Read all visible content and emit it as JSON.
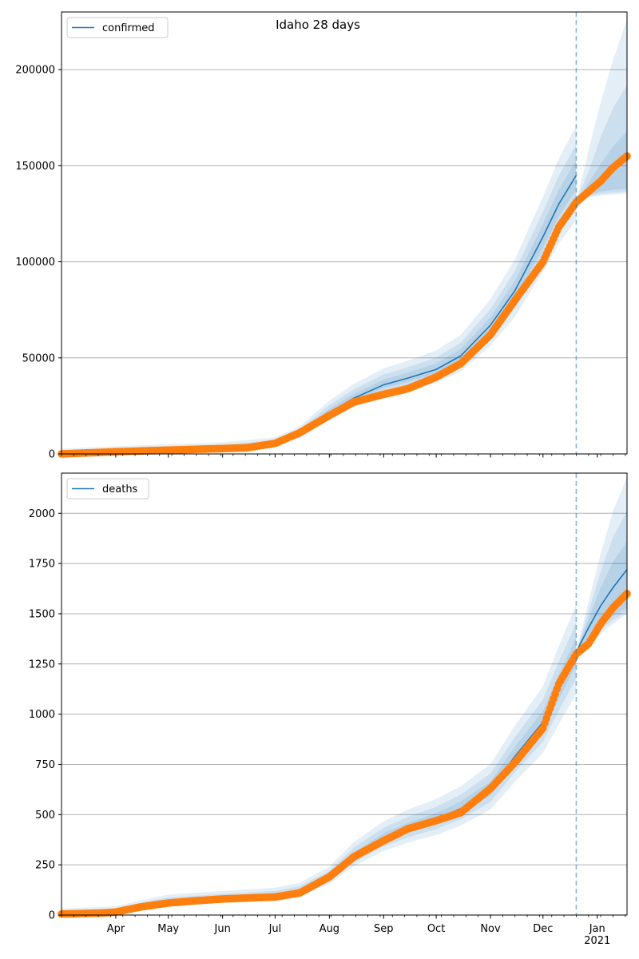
{
  "figure": {
    "title": "Idaho 28 days"
  },
  "colors": {
    "fit": "#1f77b4",
    "observed": "#ff7f0e",
    "band": "#1f77b4",
    "grid": "#b0b0b0"
  },
  "chart_data": [
    {
      "type": "line",
      "legend": "confirmed",
      "legend_position": "top-left",
      "grid": "horizontal",
      "xlim": [
        "2020-03-01",
        "2021-01-18"
      ],
      "ylim": [
        0,
        230000
      ],
      "x_ticks": [
        {
          "date": "2020-04-01",
          "label": "Apr"
        },
        {
          "date": "2020-05-01",
          "label": "May"
        },
        {
          "date": "2020-06-01",
          "label": "Jun"
        },
        {
          "date": "2020-07-01",
          "label": "Jul"
        },
        {
          "date": "2020-08-01",
          "label": "Aug"
        },
        {
          "date": "2020-09-01",
          "label": "Sep"
        },
        {
          "date": "2020-10-01",
          "label": "Oct"
        },
        {
          "date": "2020-11-01",
          "label": "Nov"
        },
        {
          "date": "2020-12-01",
          "label": "Dec"
        },
        {
          "date": "2021-01-01",
          "label": "Jan\n2021"
        }
      ],
      "y_ticks": [
        0,
        50000,
        100000,
        150000,
        200000
      ],
      "forecast_start": "2020-12-20",
      "fit": {
        "x": [
          "2020-03-01",
          "2020-04-01",
          "2020-05-01",
          "2020-06-01",
          "2020-07-01",
          "2020-07-15",
          "2020-08-01",
          "2020-08-15",
          "2020-09-01",
          "2020-09-15",
          "2020-10-01",
          "2020-10-15",
          "2020-11-01",
          "2020-11-15",
          "2020-12-01",
          "2020-12-10",
          "2020-12-20"
        ],
        "y": [
          0,
          1000,
          2000,
          2800,
          5000,
          10000,
          21500,
          29000,
          36000,
          39500,
          44000,
          51000,
          67000,
          85000,
          113000,
          130000,
          145000
        ]
      },
      "forecast": {
        "x": [
          "2020-12-20",
          "2020-12-27",
          "2021-01-03",
          "2021-01-10",
          "2021-01-18"
        ],
        "median": [
          131000,
          137000,
          143000,
          150000,
          156000
        ],
        "bands": [
          {
            "lower": [
              131000,
              134500,
              136500,
              137500,
              138000
            ],
            "upper": [
              131000,
              141000,
              151000,
              160000,
              168000
            ]
          },
          {
            "lower": [
              131000,
              134000,
              135500,
              136000,
              136500
            ],
            "upper": [
              131000,
              147000,
              165000,
              180000,
              192000
            ]
          },
          {
            "lower": [
              131000,
              133500,
              134500,
              135000,
              135500
            ],
            "upper": [
              131000,
              158000,
              183000,
              205000,
              226000
            ]
          }
        ]
      },
      "observed": {
        "x": [
          "2020-03-01",
          "2020-04-01",
          "2020-05-01",
          "2020-06-01",
          "2020-06-15",
          "2020-07-01",
          "2020-07-15",
          "2020-08-01",
          "2020-08-15",
          "2020-09-01",
          "2020-09-15",
          "2020-10-01",
          "2020-10-15",
          "2020-11-01",
          "2020-11-15",
          "2020-12-01",
          "2020-12-10",
          "2020-12-20",
          "2020-12-27",
          "2021-01-03",
          "2021-01-10",
          "2021-01-18"
        ],
        "y": [
          0,
          1100,
          2000,
          2800,
          3200,
          5500,
          11000,
          20000,
          27000,
          31000,
          34000,
          40000,
          47000,
          62000,
          80000,
          100000,
          118000,
          131000,
          136500,
          142000,
          149000,
          155000
        ]
      }
    },
    {
      "type": "line",
      "legend": "deaths",
      "legend_position": "top-left",
      "grid": "horizontal",
      "xlim": [
        "2020-03-01",
        "2021-01-18"
      ],
      "ylim": [
        0,
        2200
      ],
      "x_ticks": [
        {
          "date": "2020-04-01",
          "label": "Apr"
        },
        {
          "date": "2020-05-01",
          "label": "May"
        },
        {
          "date": "2020-06-01",
          "label": "Jun"
        },
        {
          "date": "2020-07-01",
          "label": "Jul"
        },
        {
          "date": "2020-08-01",
          "label": "Aug"
        },
        {
          "date": "2020-09-01",
          "label": "Sep"
        },
        {
          "date": "2020-10-01",
          "label": "Oct"
        },
        {
          "date": "2020-11-01",
          "label": "Nov"
        },
        {
          "date": "2020-12-01",
          "label": "Dec"
        },
        {
          "date": "2021-01-01",
          "label": "Jan\n2021"
        }
      ],
      "y_ticks": [
        0,
        250,
        500,
        750,
        1000,
        1250,
        1500,
        1750,
        2000
      ],
      "forecast_start": "2020-12-20",
      "fit": {
        "x": [
          "2020-03-01",
          "2020-04-01",
          "2020-04-15",
          "2020-05-01",
          "2020-06-01",
          "2020-07-01",
          "2020-07-15",
          "2020-08-01",
          "2020-08-15",
          "2020-09-01",
          "2020-09-15",
          "2020-10-01",
          "2020-10-15",
          "2020-11-01",
          "2020-11-15",
          "2020-12-01",
          "2020-12-10",
          "2020-12-20"
        ],
        "y": [
          5,
          15,
          40,
          65,
          80,
          95,
          115,
          185,
          290,
          380,
          430,
          475,
          530,
          625,
          790,
          960,
          1130,
          1310
        ]
      },
      "forecast": {
        "x": [
          "2020-12-20",
          "2020-12-27",
          "2021-01-03",
          "2021-01-10",
          "2021-01-18"
        ],
        "median": [
          1310,
          1430,
          1540,
          1630,
          1720
        ],
        "bands": [
          {
            "lower": [
              1310,
              1380,
              1440,
              1490,
              1530
            ],
            "upper": [
              1310,
              1470,
              1630,
              1760,
              1860
            ]
          },
          {
            "lower": [
              1310,
              1360,
              1420,
              1470,
              1510
            ],
            "upper": [
              1310,
              1510,
              1710,
              1880,
              2010
            ]
          },
          {
            "lower": [
              1310,
              1340,
              1400,
              1450,
              1500
            ],
            "upper": [
              1310,
              1560,
              1800,
              2010,
              2180
            ]
          }
        ]
      },
      "observed": {
        "x": [
          "2020-03-01",
          "2020-03-25",
          "2020-04-01",
          "2020-04-15",
          "2020-05-01",
          "2020-05-15",
          "2020-06-01",
          "2020-07-01",
          "2020-07-15",
          "2020-08-01",
          "2020-08-15",
          "2020-09-01",
          "2020-09-15",
          "2020-10-01",
          "2020-10-15",
          "2020-11-01",
          "2020-11-15",
          "2020-12-01",
          "2020-12-10",
          "2020-12-20",
          "2020-12-27",
          "2021-01-03",
          "2021-01-10",
          "2021-01-18"
        ],
        "y": [
          5,
          10,
          15,
          40,
          60,
          70,
          80,
          90,
          110,
          190,
          290,
          370,
          430,
          470,
          510,
          630,
          760,
          930,
          1150,
          1300,
          1350,
          1450,
          1530,
          1600
        ]
      }
    }
  ]
}
